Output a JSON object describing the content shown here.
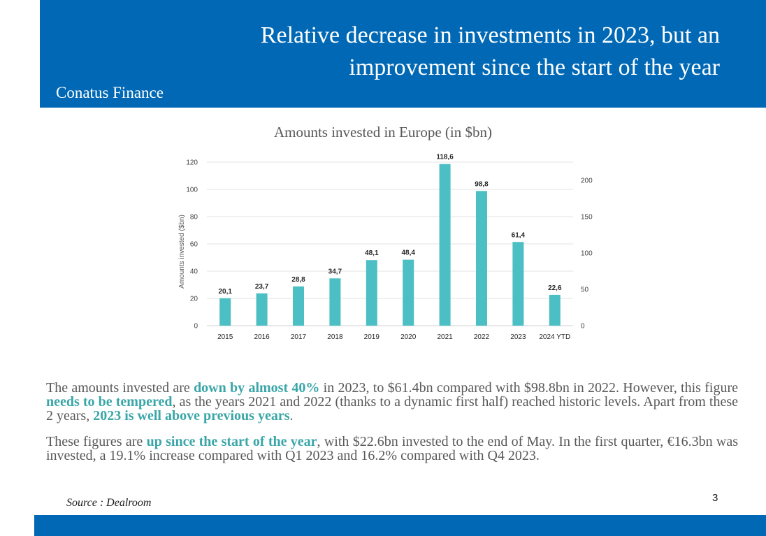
{
  "header": {
    "title_line1": "Relative decrease in investments in 2023, but an",
    "title_line2": "improvement since the start of the year",
    "company": "Conatus Finance",
    "color": "#0068b4"
  },
  "chart_data": {
    "type": "bar",
    "title": "Amounts invested in Europe (in $bn)",
    "ylabel": "Amounts invested ($bn)",
    "categories": [
      "2015",
      "2016",
      "2017",
      "2018",
      "2019",
      "2020",
      "2021",
      "2022",
      "2023",
      "2024 YTD"
    ],
    "values": [
      20.1,
      23.7,
      28.8,
      34.7,
      48.1,
      48.4,
      118.6,
      98.8,
      61.4,
      22.6
    ],
    "value_labels": [
      "20,1",
      "23,7",
      "28,8",
      "34,7",
      "48,1",
      "48,4",
      "118,6",
      "98,8",
      "61,4",
      "22,6"
    ],
    "ylim": [
      0,
      120
    ],
    "yticks": [
      0,
      20,
      40,
      60,
      80,
      100,
      120
    ],
    "y2lim": [
      0,
      225
    ],
    "y2ticks": [
      0,
      50,
      100,
      150,
      200
    ],
    "grid": true,
    "bar_color": "#4bbfc4"
  },
  "text": {
    "p1_a": "The amounts invested are ",
    "p1_b": "down by almost 40%",
    "p1_c": " in 2023, to $61.4bn compared with $98.8bn in 2022. However, this figure ",
    "p1_d": "needs to be tempered",
    "p1_e": ", as the years 2021 and 2022 (thanks to a dynamic first half) reached historic levels. Apart from these 2 years, ",
    "p1_f": "2023 is well above previous years",
    "p1_g": ".",
    "p2_a": "These figures are ",
    "p2_b": "up since the start of the year",
    "p2_c": ", with $22.6bn invested to the end of May. In the first quarter, €16.3bn was invested, a 19.1% increase compared with Q1 2023 and 16.2% compared with Q4 2023."
  },
  "footer": {
    "source": "Source : Dealroom",
    "page_number": "3"
  }
}
